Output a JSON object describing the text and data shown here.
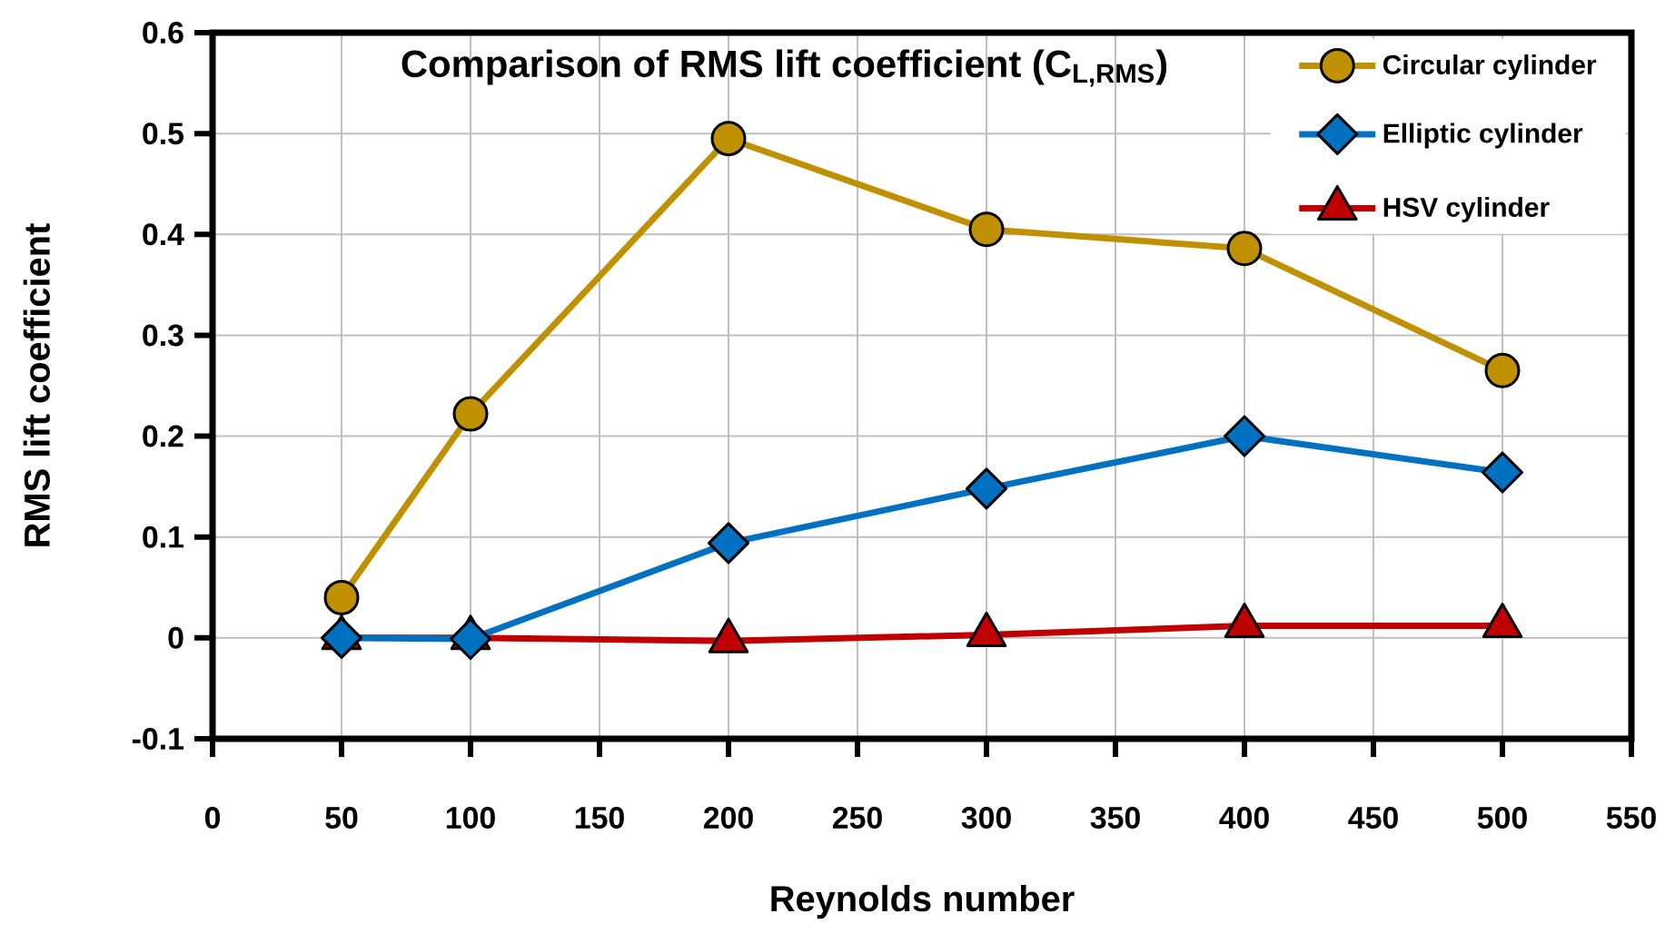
{
  "chart_data": {
    "type": "line",
    "title": "Comparison of RMS lift coefficient (C$_{L,RMS}$)",
    "xlabel": "Reynolds number",
    "ylabel": "RMS lift coefficient",
    "x": [
      50,
      100,
      200,
      300,
      400,
      500
    ],
    "series": [
      {
        "name": "Circular cylinder",
        "color": "#BF9000",
        "marker": "circle",
        "values": [
          0.04,
          0.222,
          0.495,
          0.405,
          0.386,
          0.265
        ]
      },
      {
        "name": "Elliptic cylinder",
        "color": "#0070C0",
        "marker": "diamond",
        "values": [
          0.0,
          -0.001,
          0.094,
          0.148,
          0.2,
          0.164
        ]
      },
      {
        "name": "HSV cylinder",
        "color": "#C00000",
        "marker": "triangle",
        "values": [
          0.0,
          0.0,
          -0.003,
          0.003,
          0.012,
          0.012
        ]
      }
    ],
    "xlim": [
      0,
      550
    ],
    "ylim": [
      -0.1,
      0.6
    ],
    "xticks": [
      0,
      50,
      100,
      150,
      200,
      250,
      300,
      350,
      400,
      450,
      500,
      550
    ],
    "yticks": [
      -0.1,
      0,
      0.1,
      0.2,
      0.3,
      0.4,
      0.5,
      0.6
    ],
    "grid": true,
    "legend": "top right",
    "line_style": "solid"
  }
}
